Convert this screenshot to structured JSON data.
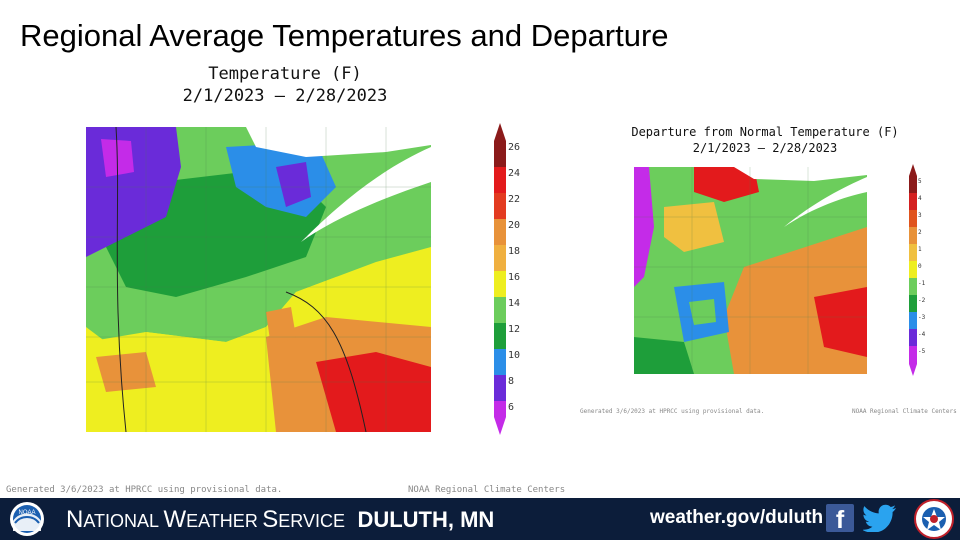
{
  "slide": {
    "title": "Regional Average Temperatures and Departure"
  },
  "temperature_map": {
    "title_line1": "Temperature (F)",
    "title_line2": "2/1/2023 – 2/28/2023",
    "legend_ticks": [
      "26",
      "24",
      "22",
      "20",
      "18",
      "16",
      "14",
      "12",
      "10",
      "8",
      "6"
    ],
    "legend_colors": [
      "#8b1a1a",
      "#e31a1c",
      "#e33b20",
      "#e8923a",
      "#f0b040",
      "#eeee20",
      "#6ccd5c",
      "#1e9e3a",
      "#2b8ee8",
      "#6a2bd9",
      "#c42be8"
    ],
    "footer_left": "Generated 3/6/2023 at HPRCC using provisional data.",
    "footer_right": "NOAA Regional Climate Centers"
  },
  "departure_map": {
    "title_line1": "Departure from Normal Temperature (F)",
    "title_line2": "2/1/2023 – 2/28/2023",
    "legend_ticks": [
      "5",
      "4",
      "3",
      "2",
      "1",
      "0",
      "-1",
      "-2",
      "-3",
      "-4",
      "-5"
    ],
    "legend_colors": [
      "#8b1a1a",
      "#d42020",
      "#e0541e",
      "#e8923a",
      "#f0c040",
      "#eeee20",
      "#6ccd5c",
      "#1e9e3a",
      "#2b8ee8",
      "#6a2bd9",
      "#c42be8"
    ],
    "footer_left": "Generated 3/6/2023 at HPRCC using provisional data.",
    "footer_right": "NOAA Regional Climate Centers"
  },
  "footer_bar": {
    "agency_n": "N",
    "agency_ational": "ATIONAL",
    "agency_w": "W",
    "agency_eather": "EATHER",
    "agency_s": "S",
    "agency_ervice": "ERVICE",
    "office": "DULUTH, MN",
    "url": "weather.gov/duluth",
    "facebook_glyph": "f",
    "noaa_logo_text": "NOAA",
    "icons": [
      "noaa-logo",
      "facebook-icon",
      "twitter-icon",
      "nws-logo"
    ]
  }
}
